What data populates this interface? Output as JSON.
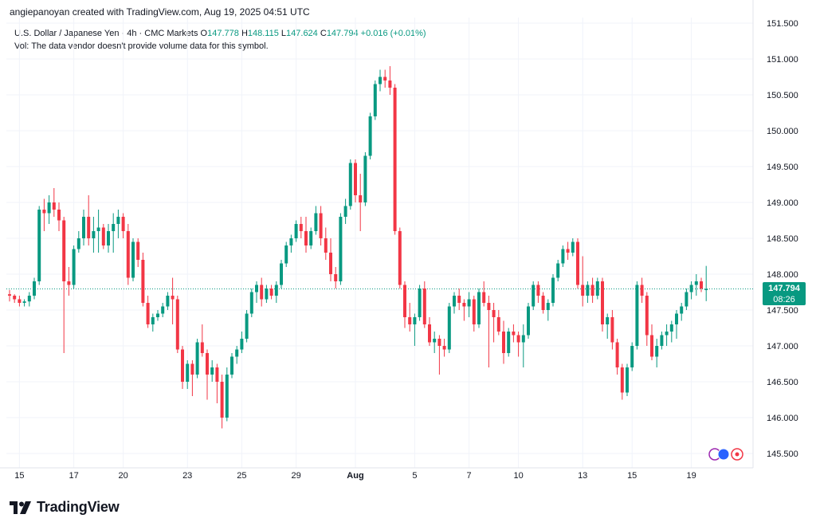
{
  "header": {
    "created_line": "angiepanoyan created with TradingView.com, Aug 19, 2025 04:51 UTC"
  },
  "legend": {
    "symbol": "U.S. Dollar / Japanese Yen · 4h · CMC Markets",
    "open_label": "O",
    "open": "147.778",
    "high_label": "H",
    "high": "148.115",
    "low_label": "L",
    "low": "147.624",
    "close_label": "C",
    "close": "147.794",
    "change": "+0.016 (+0.01%)",
    "volume_note": "Vol: The data vendor doesn't provide volume data for this symbol."
  },
  "price_label": {
    "price": "147.794",
    "countdown": "08:26"
  },
  "brand": {
    "name": "TradingView"
  },
  "colors": {
    "up": "#089981",
    "down": "#f23645",
    "grid": "#f0f3fa",
    "axis_text": "#131722",
    "last_line": "#089981"
  },
  "chart_data": {
    "type": "candlestick",
    "title": "",
    "xlabel": "",
    "ylabel": "",
    "ylim": [
      145.4,
      151.65
    ],
    "y_ticks": [
      "145.500",
      "146.000",
      "146.500",
      "147.000",
      "147.500",
      "148.000",
      "148.500",
      "149.000",
      "149.500",
      "150.000",
      "150.500",
      "151.000",
      "151.500"
    ],
    "x_ticks": [
      {
        "label": "15",
        "i": 2
      },
      {
        "label": "17",
        "i": 13
      },
      {
        "label": "20",
        "i": 23
      },
      {
        "label": "23",
        "i": 36
      },
      {
        "label": "25",
        "i": 47
      },
      {
        "label": "29",
        "i": 58
      },
      {
        "label": "Aug",
        "i": 70
      },
      {
        "label": "5",
        "i": 82
      },
      {
        "label": "7",
        "i": 93
      },
      {
        "label": "10",
        "i": 103
      },
      {
        "label": "13",
        "i": 116
      },
      {
        "label": "15",
        "i": 126
      },
      {
        "label": "19",
        "i": 138
      }
    ],
    "grid": true,
    "last_price": 147.794,
    "candles": [
      [
        147.72,
        147.78,
        147.62,
        147.7
      ],
      [
        147.7,
        147.72,
        147.6,
        147.65
      ],
      [
        147.65,
        147.7,
        147.55,
        147.6
      ],
      [
        147.6,
        147.65,
        147.55,
        147.62
      ],
      [
        147.62,
        147.75,
        147.55,
        147.7
      ],
      [
        147.7,
        147.95,
        147.65,
        147.9
      ],
      [
        147.9,
        148.95,
        147.85,
        148.9
      ],
      [
        148.9,
        149.05,
        148.6,
        148.85
      ],
      [
        148.85,
        149.1,
        148.7,
        149.0
      ],
      [
        149.0,
        149.2,
        148.8,
        148.9
      ],
      [
        148.9,
        149.0,
        148.6,
        148.75
      ],
      [
        148.75,
        148.8,
        146.9,
        147.9
      ],
      [
        147.9,
        148.1,
        147.7,
        147.85
      ],
      [
        147.85,
        148.4,
        147.8,
        148.35
      ],
      [
        148.35,
        148.6,
        148.3,
        148.5
      ],
      [
        148.5,
        148.9,
        148.4,
        148.8
      ],
      [
        148.8,
        149.1,
        148.4,
        148.5
      ],
      [
        148.5,
        148.8,
        148.3,
        148.6
      ],
      [
        148.6,
        148.9,
        148.3,
        148.65
      ],
      [
        148.65,
        148.7,
        148.35,
        148.4
      ],
      [
        148.4,
        148.7,
        148.3,
        148.6
      ],
      [
        148.6,
        148.85,
        148.3,
        148.7
      ],
      [
        148.7,
        148.9,
        148.5,
        148.8
      ],
      [
        148.8,
        148.85,
        148.5,
        148.6
      ],
      [
        148.6,
        148.7,
        147.85,
        147.95
      ],
      [
        147.95,
        148.5,
        147.9,
        148.45
      ],
      [
        148.45,
        148.5,
        148.1,
        148.2
      ],
      [
        148.2,
        148.3,
        147.55,
        147.6
      ],
      [
        147.6,
        147.7,
        147.25,
        147.3
      ],
      [
        147.3,
        147.45,
        147.2,
        147.4
      ],
      [
        147.4,
        147.5,
        147.35,
        147.45
      ],
      [
        147.45,
        147.6,
        147.4,
        147.55
      ],
      [
        147.55,
        147.75,
        147.5,
        147.7
      ],
      [
        147.7,
        147.95,
        147.3,
        147.65
      ],
      [
        147.65,
        147.7,
        146.9,
        146.95
      ],
      [
        146.95,
        147.0,
        146.4,
        146.5
      ],
      [
        146.5,
        146.8,
        146.4,
        146.75
      ],
      [
        146.75,
        146.8,
        146.3,
        146.6
      ],
      [
        146.6,
        147.1,
        146.55,
        147.05
      ],
      [
        147.05,
        147.3,
        146.85,
        146.9
      ],
      [
        146.9,
        146.95,
        146.25,
        146.6
      ],
      [
        146.6,
        146.8,
        146.5,
        146.7
      ],
      [
        146.7,
        146.75,
        146.2,
        146.5
      ],
      [
        146.5,
        146.6,
        145.85,
        146.0
      ],
      [
        146.0,
        146.7,
        145.95,
        146.6
      ],
      [
        146.6,
        146.9,
        146.55,
        146.85
      ],
      [
        146.85,
        147.0,
        146.75,
        146.95
      ],
      [
        146.95,
        147.2,
        146.9,
        147.1
      ],
      [
        147.1,
        147.5,
        147.05,
        147.45
      ],
      [
        147.45,
        147.8,
        147.4,
        147.75
      ],
      [
        147.75,
        147.9,
        147.6,
        147.85
      ],
      [
        147.85,
        147.95,
        147.55,
        147.65
      ],
      [
        147.65,
        147.85,
        147.6,
        147.8
      ],
      [
        147.8,
        147.85,
        147.65,
        147.7
      ],
      [
        147.7,
        147.9,
        147.6,
        147.85
      ],
      [
        147.85,
        148.2,
        147.8,
        148.15
      ],
      [
        148.15,
        148.45,
        148.1,
        148.4
      ],
      [
        148.4,
        148.55,
        148.3,
        148.5
      ],
      [
        148.5,
        148.75,
        148.45,
        148.7
      ],
      [
        148.7,
        148.8,
        148.5,
        148.6
      ],
      [
        148.6,
        148.8,
        148.3,
        148.4
      ],
      [
        148.4,
        148.65,
        148.35,
        148.6
      ],
      [
        148.6,
        148.95,
        148.55,
        148.85
      ],
      [
        148.85,
        148.95,
        148.4,
        148.5
      ],
      [
        148.5,
        148.65,
        148.2,
        148.3
      ],
      [
        148.3,
        148.5,
        147.9,
        148.0
      ],
      [
        148.0,
        148.1,
        147.8,
        147.9
      ],
      [
        147.9,
        148.85,
        147.85,
        148.8
      ],
      [
        148.8,
        149.05,
        148.7,
        148.95
      ],
      [
        148.95,
        149.6,
        148.9,
        149.55
      ],
      [
        149.55,
        149.6,
        149.0,
        149.1
      ],
      [
        149.1,
        149.4,
        148.6,
        149.0
      ],
      [
        149.0,
        149.7,
        148.95,
        149.65
      ],
      [
        149.65,
        150.25,
        149.6,
        150.2
      ],
      [
        150.2,
        150.7,
        150.15,
        150.65
      ],
      [
        150.65,
        150.85,
        150.55,
        150.75
      ],
      [
        150.75,
        150.85,
        150.6,
        150.7
      ],
      [
        150.7,
        150.9,
        150.5,
        150.6
      ],
      [
        150.6,
        150.65,
        148.55,
        148.6
      ],
      [
        148.6,
        148.65,
        147.8,
        147.85
      ],
      [
        147.85,
        147.9,
        147.25,
        147.4
      ],
      [
        147.4,
        147.6,
        147.2,
        147.3
      ],
      [
        147.3,
        147.45,
        147.0,
        147.4
      ],
      [
        147.4,
        147.85,
        147.35,
        147.8
      ],
      [
        147.8,
        147.9,
        147.25,
        147.3
      ],
      [
        147.3,
        147.4,
        147.0,
        147.05
      ],
      [
        147.05,
        147.2,
        146.9,
        147.1
      ],
      [
        147.1,
        147.15,
        146.6,
        147.0
      ],
      [
        147.0,
        147.1,
        146.85,
        146.95
      ],
      [
        146.95,
        147.6,
        146.9,
        147.55
      ],
      [
        147.55,
        147.75,
        147.45,
        147.7
      ],
      [
        147.7,
        147.8,
        147.5,
        147.6
      ],
      [
        147.6,
        147.65,
        147.35,
        147.55
      ],
      [
        147.55,
        147.75,
        147.4,
        147.65
      ],
      [
        147.65,
        147.7,
        147.2,
        147.3
      ],
      [
        147.3,
        147.8,
        147.25,
        147.75
      ],
      [
        147.75,
        147.9,
        147.55,
        147.6
      ],
      [
        147.6,
        147.7,
        146.7,
        147.5
      ],
      [
        147.5,
        147.6,
        147.05,
        147.4
      ],
      [
        147.4,
        147.5,
        147.15,
        147.2
      ],
      [
        147.2,
        147.35,
        146.75,
        146.9
      ],
      [
        146.9,
        147.25,
        146.85,
        147.2
      ],
      [
        147.2,
        147.3,
        147.05,
        147.15
      ],
      [
        147.15,
        147.2,
        146.85,
        147.05
      ],
      [
        147.05,
        147.3,
        146.7,
        147.15
      ],
      [
        147.15,
        147.6,
        147.1,
        147.55
      ],
      [
        147.55,
        147.9,
        147.5,
        147.85
      ],
      [
        147.85,
        147.9,
        147.6,
        147.7
      ],
      [
        147.7,
        147.75,
        147.45,
        147.5
      ],
      [
        147.5,
        147.65,
        147.35,
        147.6
      ],
      [
        147.6,
        148.0,
        147.55,
        147.95
      ],
      [
        147.95,
        148.2,
        147.9,
        148.15
      ],
      [
        148.15,
        148.4,
        148.1,
        148.35
      ],
      [
        148.35,
        148.45,
        148.2,
        148.3
      ],
      [
        148.3,
        148.5,
        148.25,
        148.45
      ],
      [
        148.45,
        148.5,
        147.8,
        147.85
      ],
      [
        147.85,
        148.25,
        147.55,
        147.7
      ],
      [
        147.7,
        147.9,
        147.6,
        147.85
      ],
      [
        147.85,
        147.95,
        147.6,
        147.7
      ],
      [
        147.7,
        147.95,
        147.65,
        147.9
      ],
      [
        147.9,
        147.95,
        147.2,
        147.3
      ],
      [
        147.3,
        147.45,
        147.1,
        147.4
      ],
      [
        147.4,
        147.5,
        146.95,
        147.05
      ],
      [
        147.05,
        147.1,
        146.6,
        146.7
      ],
      [
        146.7,
        146.75,
        146.25,
        146.35
      ],
      [
        146.35,
        146.75,
        146.3,
        146.7
      ],
      [
        146.7,
        147.05,
        146.65,
        147.0
      ],
      [
        147.0,
        147.9,
        146.95,
        147.85
      ],
      [
        147.85,
        147.95,
        147.6,
        147.7
      ],
      [
        147.7,
        147.75,
        147.0,
        147.15
      ],
      [
        147.15,
        147.3,
        146.8,
        146.85
      ],
      [
        146.85,
        147.1,
        146.7,
        147.0
      ],
      [
        147.0,
        147.2,
        146.95,
        147.15
      ],
      [
        147.15,
        147.3,
        147.0,
        147.2
      ],
      [
        147.2,
        147.35,
        147.05,
        147.3
      ],
      [
        147.3,
        147.5,
        147.1,
        147.45
      ],
      [
        147.45,
        147.6,
        147.35,
        147.55
      ],
      [
        147.55,
        147.8,
        147.5,
        147.75
      ],
      [
        147.75,
        147.9,
        147.65,
        147.85
      ],
      [
        147.85,
        148.0,
        147.7,
        147.9
      ],
      [
        147.9,
        147.95,
        147.75,
        147.8
      ],
      [
        147.778,
        148.115,
        147.624,
        147.794
      ]
    ]
  }
}
